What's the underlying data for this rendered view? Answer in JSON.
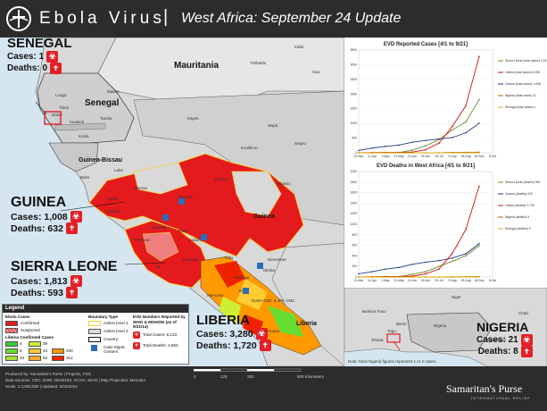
{
  "header": {
    "title": "Ebola Virus",
    "separator": "|",
    "subtitle": "West Africa: September 24 Update"
  },
  "callouts": {
    "senegal": {
      "name": "SENEGAL",
      "cases_label": "Cases: 1",
      "deaths_label": "Deaths: 0"
    },
    "guinea": {
      "name": "GUINEA",
      "cases_label": "Cases: 1,008",
      "deaths_label": "Deaths: 632"
    },
    "sierra_leone": {
      "name": "SIERRA LEONE",
      "cases_label": "Cases: 1,813",
      "deaths_label": "Deaths: 593"
    },
    "liberia": {
      "name": "LIBERIA",
      "cases_label": "Cases: 3,280",
      "deaths_label": "Deaths: 1,720"
    },
    "nigeria": {
      "name": "NIGERIA",
      "cases_label": "Cases: 21",
      "deaths_label": "Deaths: 8"
    }
  },
  "map_labels": {
    "mauritania": "Mauritania",
    "senegal": "Senegal",
    "guinea_bissau": "Guinea-Bissau",
    "guinea": "Guinea",
    "liberia": "Liberia",
    "mali_places": [
      "Kidal",
      "Timbuktu",
      "Gao",
      "Mopti",
      "Kayes",
      "Koulikoro",
      "Segou",
      "Sikasso"
    ],
    "places": [
      "Dakar",
      "Thies",
      "Louga",
      "Matam",
      "Kaolack",
      "Tamba",
      "Kolda",
      "Labe",
      "Boke",
      "Kindia",
      "Mamou",
      "Faranah",
      "Kankan",
      "Nzerekore",
      "Conakry",
      "Freetown",
      "Bo",
      "Kenema",
      "Monrovia",
      "Gbarnga",
      "Harper",
      "Lofa",
      "Nimba",
      "Bong",
      "Kailahun",
      "Kono",
      "Bombali"
    ],
    "elwa": "ELWA CMC & JFK CMC"
  },
  "legend": {
    "title": "Legend",
    "ebola_cases": "Ebola Cases",
    "confirmed": "Confirmed",
    "suspected": "Suspected",
    "liberia_confirmed": "Liberia Confirmed Cases",
    "liberia_bins": [
      {
        "label": "4",
        "color": "#33cc33"
      },
      {
        "label": "39",
        "color": "#ccee33"
      },
      {
        "label": "6",
        "color": "#66dd33"
      },
      {
        "label": "43",
        "color": "#ffcc33"
      },
      {
        "label": "200",
        "color": "#ff9900"
      },
      {
        "label": "33",
        "color": "#aadd33"
      },
      {
        "label": "53",
        "color": "#ffaa33"
      },
      {
        "label": "312",
        "color": "#ee2200"
      }
    ],
    "boundary_type": "Boundary Type",
    "admin1": "Admin level 1",
    "admin2": "Admin level 2",
    "country": "Country",
    "case_mgmt": "Case Mgmt. Centers",
    "evd_title": "EVD Numbers Reported by WHO & MOHSW (as of 9/21/14)",
    "total_cases": "Total Cases: 6,123",
    "total_deaths": "Total Deaths: 2,953"
  },
  "footer": {
    "line1": "Produced by: Samaritan's Purse | Projects, FSG",
    "line2": "Data Sources: CDC, ESRI, NEMHSS, OCHA, WHO | Map Projection: Mercator",
    "line3": "Scale: 1:3,500,000 | Updated: 9/24/2014",
    "scale_ticks": [
      "0",
      "125",
      "250",
      "500 Kilometers"
    ],
    "brand": "Samaritan's Purse",
    "brand_sub": "INTERNATIONAL RELIEF"
  },
  "inset": {
    "labels": [
      "Niger",
      "Chad",
      "Burkina Faso",
      "Benin",
      "Nigeria",
      "Ghana",
      "Cameroon",
      "Togo"
    ],
    "note": "Note: Most Nigeria figures represent 1 or 2 cases..."
  },
  "chart_data": [
    {
      "type": "line",
      "title": "EVD Reported Cases [4/1 to 9/21]",
      "x": [
        "22-Mar",
        "11-Apr",
        "1-May",
        "21-May",
        "10-Jun",
        "30-Jun",
        "20-Jul",
        "9-Aug",
        "29-Aug",
        "18-Sep",
        "8-Oct"
      ],
      "ylim": [
        0,
        3500
      ],
      "yticks": [
        0,
        500,
        1000,
        1500,
        2000,
        2500,
        3000,
        3500
      ],
      "series": [
        {
          "name": "Sierra Leone (total cases) 1,813",
          "color": "#6a8e2c",
          "values": [
            0,
            0,
            0,
            10,
            90,
            240,
            450,
            780,
            1050,
            1813,
            null
          ]
        },
        {
          "name": "Liberia (total cases) 3,280",
          "color": "#cc1111",
          "values": [
            0,
            10,
            12,
            12,
            25,
            100,
            330,
            900,
            1600,
            3280,
            null
          ]
        },
        {
          "name": "Guinea (total cases) 1,008",
          "color": "#223a80",
          "values": [
            80,
            160,
            220,
            260,
            360,
            420,
            470,
            520,
            680,
            1008,
            null
          ]
        },
        {
          "name": "Nigeria (total cases) 21",
          "color": "#aa6600",
          "values": [
            0,
            0,
            0,
            0,
            0,
            0,
            1,
            12,
            17,
            21,
            null
          ]
        },
        {
          "name": "Senegal (total cases) 1",
          "color": "#ddaa00",
          "values": [
            0,
            0,
            0,
            0,
            0,
            0,
            0,
            0,
            1,
            1,
            null
          ]
        }
      ]
    },
    {
      "type": "line",
      "title": "EVD Deaths in West Africa [4/1 to 9/21]",
      "x": [
        "22-Mar",
        "11-Apr",
        "1-May",
        "21-May",
        "10-Jun",
        "30-Jun",
        "20-Jul",
        "9-Aug",
        "29-Aug",
        "18-Sep",
        "8-Oct"
      ],
      "ylim": [
        0,
        2000
      ],
      "yticks": [
        0,
        200,
        400,
        600,
        800,
        1000,
        1200,
        1400,
        1600,
        1800,
        2000
      ],
      "series": [
        {
          "name": "Sierra Leone (deaths) 593",
          "color": "#6a8e2c",
          "values": [
            0,
            0,
            0,
            5,
            50,
            100,
            200,
            300,
            400,
            593,
            null
          ]
        },
        {
          "name": "Guinea (deaths) 632",
          "color": "#223a80",
          "values": [
            60,
            100,
            150,
            180,
            240,
            280,
            310,
            360,
            440,
            632,
            null
          ]
        },
        {
          "name": "Liberia (deaths) 1,720",
          "color": "#cc1111",
          "values": [
            0,
            5,
            10,
            10,
            15,
            60,
            150,
            450,
            900,
            1720,
            null
          ]
        },
        {
          "name": "Nigeria (deaths) 8",
          "color": "#aa6600",
          "values": [
            0,
            0,
            0,
            0,
            0,
            0,
            1,
            2,
            6,
            8,
            null
          ]
        },
        {
          "name": "Senegal (deaths) 0",
          "color": "#ddaa00",
          "values": [
            0,
            0,
            0,
            0,
            0,
            0,
            0,
            0,
            0,
            0,
            null
          ]
        }
      ]
    }
  ]
}
